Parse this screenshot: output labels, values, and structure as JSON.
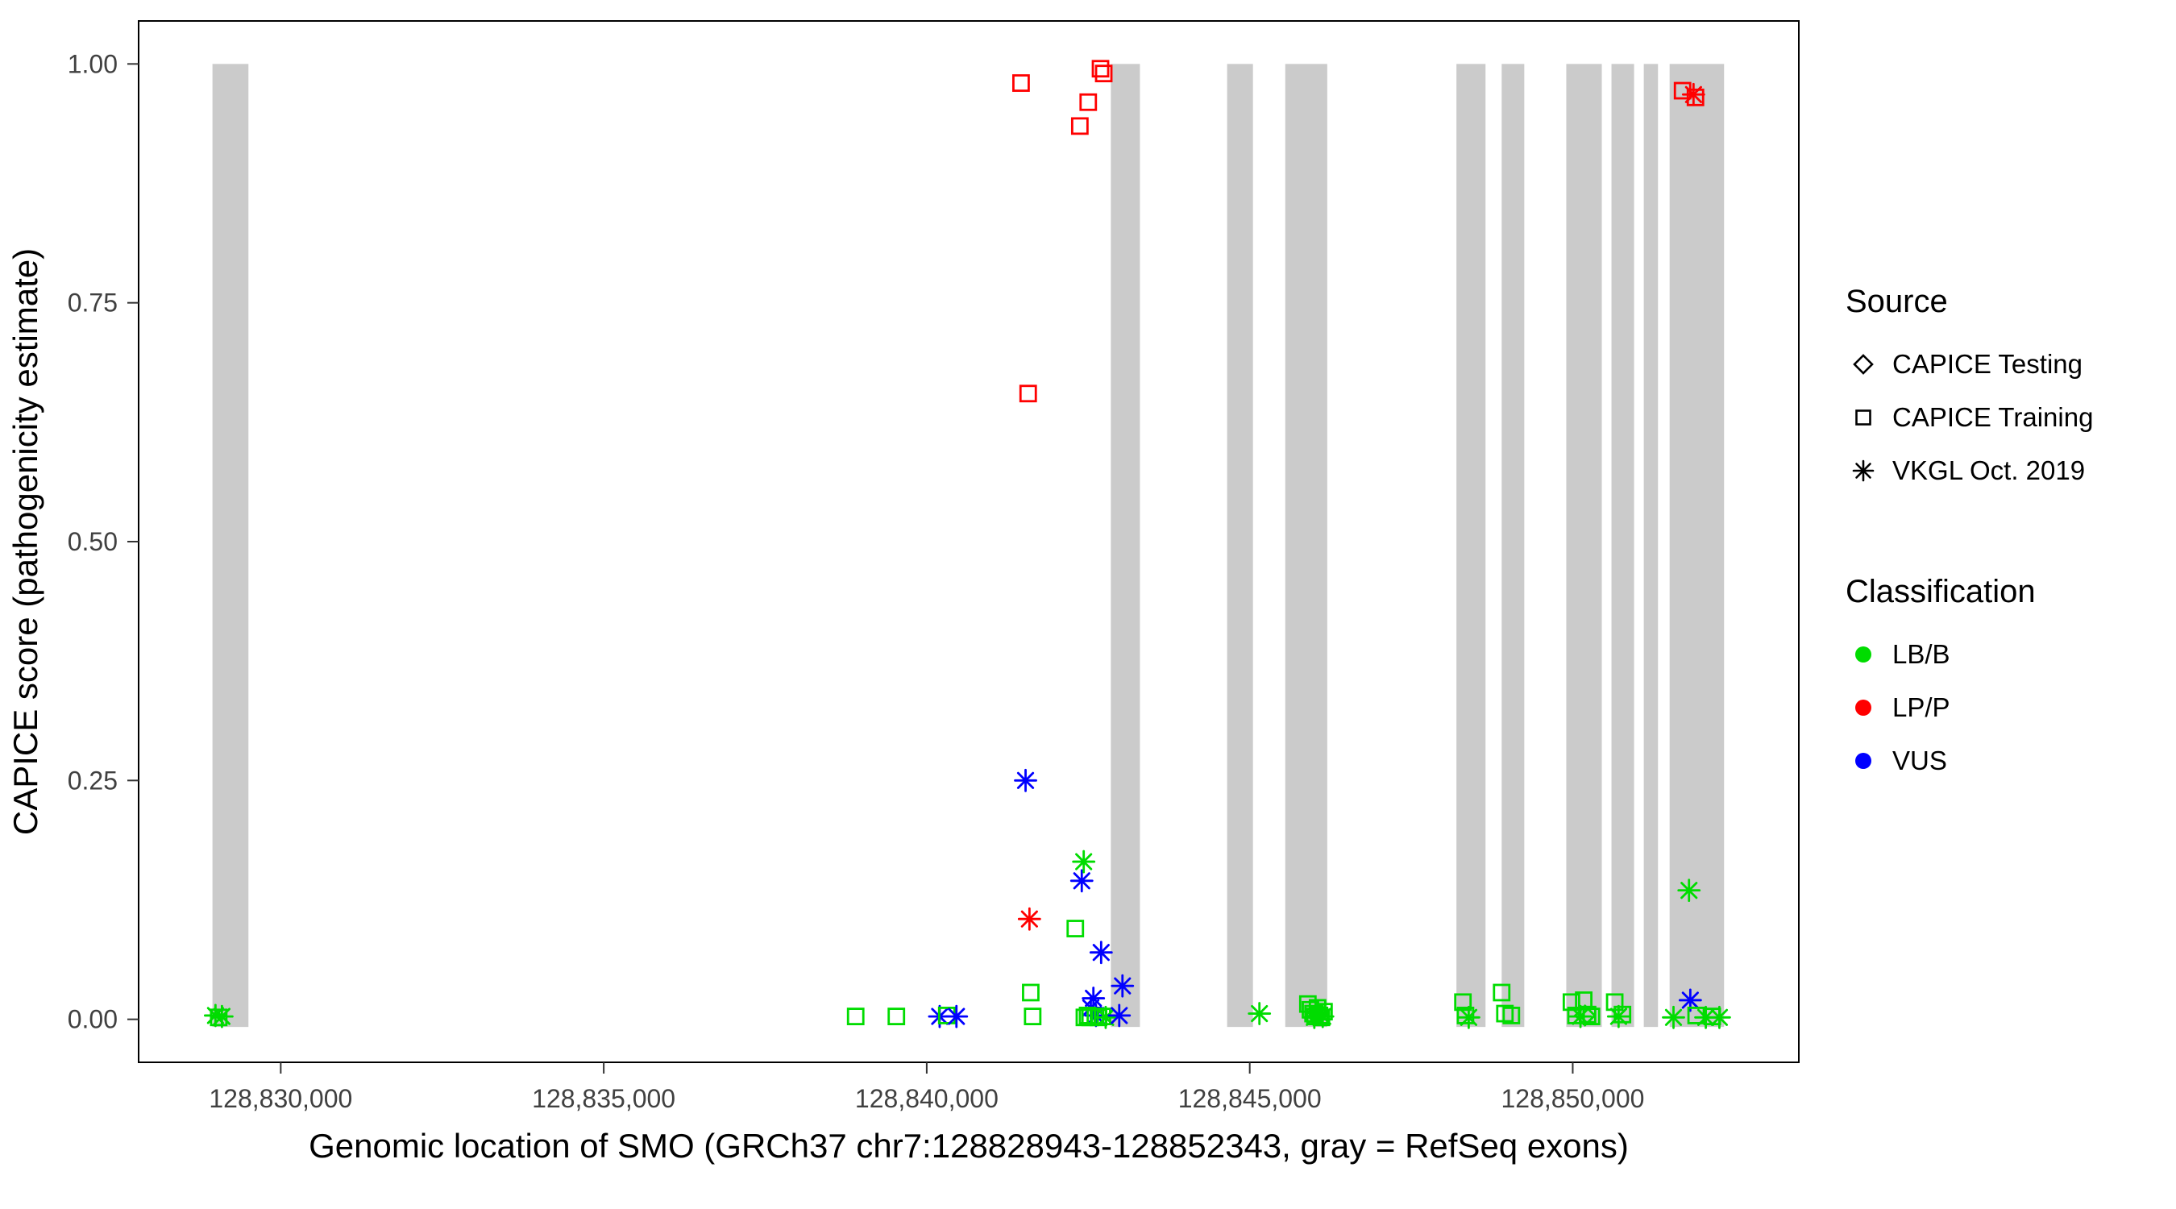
{
  "legend": {
    "source": {
      "title": "Source",
      "items": [
        {
          "label": "CAPICE Testing",
          "shape": "diamond"
        },
        {
          "label": "CAPICE Training",
          "shape": "square"
        },
        {
          "label": "VKGL Oct. 2019",
          "shape": "asterisk"
        }
      ]
    },
    "classification": {
      "title": "Classification",
      "items": [
        {
          "label": "LB/B",
          "color": "#00DC00"
        },
        {
          "label": "LP/P",
          "color": "#FF0000"
        },
        {
          "label": "VUS",
          "color": "#0000FF"
        }
      ]
    }
  },
  "chart_data": {
    "type": "scatter",
    "title": "",
    "xlabel": "Genomic location of SMO (GRCh37 chr7:128828943-128852343, gray = RefSeq exons)",
    "ylabel": "CAPICE score (pathogenicity estimate)",
    "x_domain": [
      128827800,
      128853500
    ],
    "y_domain": [
      -0.045,
      1.045
    ],
    "x_ticks": [
      {
        "value": 128830000,
        "label": "128,830,000"
      },
      {
        "value": 128835000,
        "label": "128,835,000"
      },
      {
        "value": 128840000,
        "label": "128,840,000"
      },
      {
        "value": 128845000,
        "label": "128,845,000"
      },
      {
        "value": 128850000,
        "label": "128,850,000"
      }
    ],
    "y_ticks": [
      {
        "value": 0.0,
        "label": "0.00"
      },
      {
        "value": 0.25,
        "label": "0.25"
      },
      {
        "value": 0.5,
        "label": "0.50"
      },
      {
        "value": 0.75,
        "label": "0.75"
      },
      {
        "value": 1.0,
        "label": "1.00"
      }
    ],
    "exon_color": "#CBCBCB",
    "exons": [
      [
        128828943,
        128829500
      ],
      [
        128842850,
        128843300
      ],
      [
        128844650,
        128845050
      ],
      [
        128845550,
        128846200
      ],
      [
        128848200,
        128848650
      ],
      [
        128848900,
        128849250
      ],
      [
        128849900,
        128850450
      ],
      [
        128850600,
        128850950
      ],
      [
        128851100,
        128851320
      ],
      [
        128851500,
        128852343
      ]
    ],
    "colors": {
      "LB/B": "#00DC00",
      "LP/P": "#FF0000",
      "VUS": "#0000FF"
    },
    "shapes": {
      "CAPICE Testing": "diamond",
      "CAPICE Training": "square",
      "VKGL Oct. 2019": "asterisk"
    },
    "points_columns": [
      "position",
      "score",
      "classification",
      "source"
    ],
    "points": [
      [
        128828990,
        0.004,
        "LB/B",
        "VKGL Oct. 2019"
      ],
      [
        128829040,
        0.002,
        "LB/B",
        "CAPICE Training"
      ],
      [
        128829090,
        0.003,
        "LB/B",
        "VKGL Oct. 2019"
      ],
      [
        128838900,
        0.003,
        "LB/B",
        "CAPICE Training"
      ],
      [
        128839530,
        0.003,
        "LB/B",
        "CAPICE Training"
      ],
      [
        128840200,
        0.003,
        "VUS",
        "VKGL Oct. 2019"
      ],
      [
        128840310,
        0.004,
        "LB/B",
        "CAPICE Training"
      ],
      [
        128840460,
        0.003,
        "VUS",
        "VKGL Oct. 2019"
      ],
      [
        128841460,
        0.98,
        "LP/P",
        "CAPICE Training"
      ],
      [
        128841570,
        0.655,
        "LP/P",
        "CAPICE Training"
      ],
      [
        128841530,
        0.25,
        "VUS",
        "VKGL Oct. 2019"
      ],
      [
        128841590,
        0.105,
        "LP/P",
        "VKGL Oct. 2019"
      ],
      [
        128841610,
        0.028,
        "LB/B",
        "CAPICE Training"
      ],
      [
        128841640,
        0.003,
        "LB/B",
        "CAPICE Training"
      ],
      [
        128842300,
        0.095,
        "LB/B",
        "CAPICE Training"
      ],
      [
        128842370,
        0.935,
        "LP/P",
        "CAPICE Training"
      ],
      [
        128842400,
        0.145,
        "VUS",
        "VKGL Oct. 2019"
      ],
      [
        128842430,
        0.165,
        "LB/B",
        "VKGL Oct. 2019"
      ],
      [
        128842500,
        0.96,
        "LP/P",
        "CAPICE Training"
      ],
      [
        128842690,
        0.995,
        "LP/P",
        "CAPICE Training"
      ],
      [
        128842740,
        0.99,
        "LP/P",
        "CAPICE Training"
      ],
      [
        128842700,
        0.07,
        "VUS",
        "VKGL Oct. 2019"
      ],
      [
        128842540,
        0.012,
        "VUS",
        "VKGL Oct. 2019"
      ],
      [
        128842580,
        0.022,
        "VUS",
        "VKGL Oct. 2019"
      ],
      [
        128842620,
        0.004,
        "VUS",
        "VKGL Oct. 2019"
      ],
      [
        128842440,
        0.002,
        "LB/B",
        "CAPICE Training"
      ],
      [
        128842490,
        0.004,
        "LB/B",
        "CAPICE Training"
      ],
      [
        128842530,
        0.002,
        "LB/B",
        "CAPICE Training"
      ],
      [
        128842610,
        0.003,
        "LB/B",
        "CAPICE Training"
      ],
      [
        128842660,
        0.002,
        "LB/B",
        "CAPICE Training"
      ],
      [
        128842720,
        0.003,
        "LB/B",
        "CAPICE Training"
      ],
      [
        128842770,
        0.002,
        "LB/B",
        "VKGL Oct. 2019"
      ],
      [
        128842980,
        0.004,
        "VUS",
        "VKGL Oct. 2019"
      ],
      [
        128843030,
        0.035,
        "VUS",
        "VKGL Oct. 2019"
      ],
      [
        128845150,
        0.006,
        "LB/B",
        "VKGL Oct. 2019"
      ],
      [
        128845900,
        0.016,
        "LB/B",
        "CAPICE Training"
      ],
      [
        128845940,
        0.01,
        "LB/B",
        "CAPICE Training"
      ],
      [
        128845980,
        0.006,
        "LB/B",
        "CAPICE Training"
      ],
      [
        128846010,
        0.003,
        "LB/B",
        "CAPICE Training"
      ],
      [
        128846030,
        0.005,
        "LB/B",
        "CAPICE Testing"
      ],
      [
        128846050,
        0.012,
        "LB/B",
        "CAPICE Training"
      ],
      [
        128846080,
        0.004,
        "LB/B",
        "CAPICE Training"
      ],
      [
        128846110,
        0.002,
        "LB/B",
        "CAPICE Training"
      ],
      [
        128846000,
        0.002,
        "LB/B",
        "VKGL Oct. 2019"
      ],
      [
        128846130,
        0.003,
        "LB/B",
        "VKGL Oct. 2019"
      ],
      [
        128846150,
        0.008,
        "LB/B",
        "CAPICE Training"
      ],
      [
        128848300,
        0.018,
        "LB/B",
        "CAPICE Training"
      ],
      [
        128848340,
        0.004,
        "LB/B",
        "CAPICE Training"
      ],
      [
        128848390,
        0.002,
        "LB/B",
        "VKGL Oct. 2019"
      ],
      [
        128848900,
        0.028,
        "LB/B",
        "CAPICE Training"
      ],
      [
        128848950,
        0.006,
        "LB/B",
        "CAPICE Training"
      ],
      [
        128849050,
        0.004,
        "LB/B",
        "CAPICE Training"
      ],
      [
        128849980,
        0.018,
        "LB/B",
        "CAPICE Training"
      ],
      [
        128850050,
        0.004,
        "LB/B",
        "CAPICE Training"
      ],
      [
        128850120,
        0.003,
        "LB/B",
        "VKGL Oct. 2019"
      ],
      [
        128850170,
        0.02,
        "LB/B",
        "CAPICE Training"
      ],
      [
        128850190,
        0.004,
        "LB/B",
        "CAPICE Testing"
      ],
      [
        128850230,
        0.005,
        "LB/B",
        "CAPICE Training"
      ],
      [
        128850290,
        0.003,
        "LB/B",
        "CAPICE Training"
      ],
      [
        128850650,
        0.018,
        "LB/B",
        "CAPICE Training"
      ],
      [
        128850710,
        0.003,
        "LB/B",
        "VKGL Oct. 2019"
      ],
      [
        128850770,
        0.005,
        "LB/B",
        "CAPICE Training"
      ],
      [
        128851700,
        0.972,
        "LP/P",
        "CAPICE Training"
      ],
      [
        128851900,
        0.965,
        "LP/P",
        "CAPICE Training"
      ],
      [
        128851870,
        0.968,
        "LP/P",
        "VKGL Oct. 2019"
      ],
      [
        128851800,
        0.135,
        "LB/B",
        "VKGL Oct. 2019"
      ],
      [
        128851820,
        0.02,
        "VUS",
        "VKGL Oct. 2019"
      ],
      [
        128851560,
        0.002,
        "LB/B",
        "VKGL Oct. 2019"
      ],
      [
        128851910,
        0.004,
        "LB/B",
        "CAPICE Training"
      ],
      [
        128852060,
        0.002,
        "LB/B",
        "VKGL Oct. 2019"
      ],
      [
        128852160,
        0.003,
        "LB/B",
        "CAPICE Training"
      ],
      [
        128852270,
        0.002,
        "LB/B",
        "VKGL Oct. 2019"
      ]
    ]
  }
}
